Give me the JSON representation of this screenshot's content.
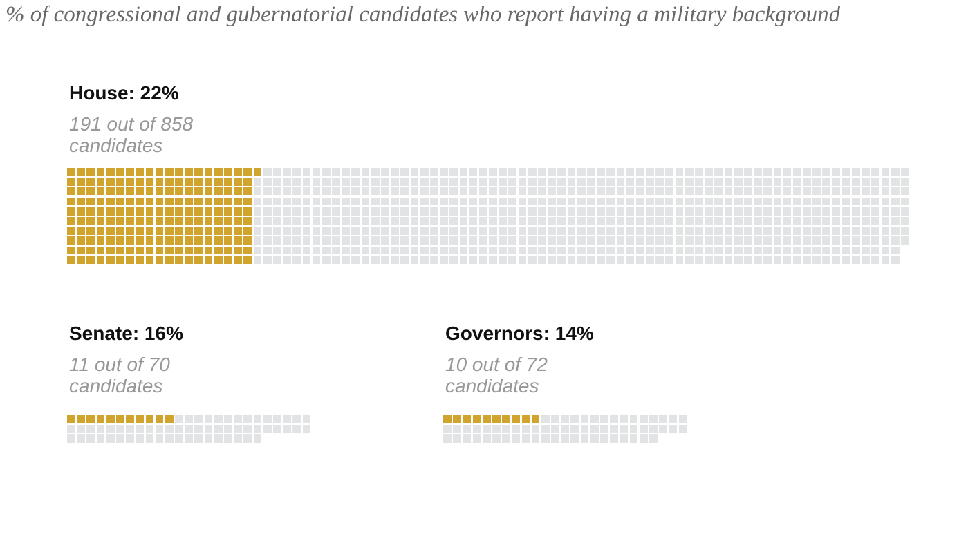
{
  "colors": {
    "filled": "#D1A42D",
    "empty": "#E2E3E4",
    "title_text": "#686868",
    "header_text": "#111111",
    "sub_text": "#989898"
  },
  "chart_data": {
    "type": "waffle",
    "title": "% of congressional and gubernatorial candidates who report having a military background",
    "legend": null,
    "series": [
      {
        "name": "House",
        "label": "House: 22%",
        "percent": 22,
        "filled": 191,
        "total": 858,
        "sublabel_lines": [
          "191 out of 858",
          "candidates"
        ],
        "fill_orientation": "column",
        "cells_per_line": 10
      },
      {
        "name": "Senate",
        "label": "Senate: 16%",
        "percent": 16,
        "filled": 11,
        "total": 70,
        "sublabel_lines": [
          "11 out of 70",
          "candidates"
        ],
        "fill_orientation": "row",
        "cells_per_line": 25
      },
      {
        "name": "Governors",
        "label": "Governors: 14%",
        "percent": 14,
        "filled": 10,
        "total": 72,
        "sublabel_lines": [
          "10 out of 72",
          "candidates"
        ],
        "fill_orientation": "row",
        "cells_per_line": 25
      }
    ]
  }
}
